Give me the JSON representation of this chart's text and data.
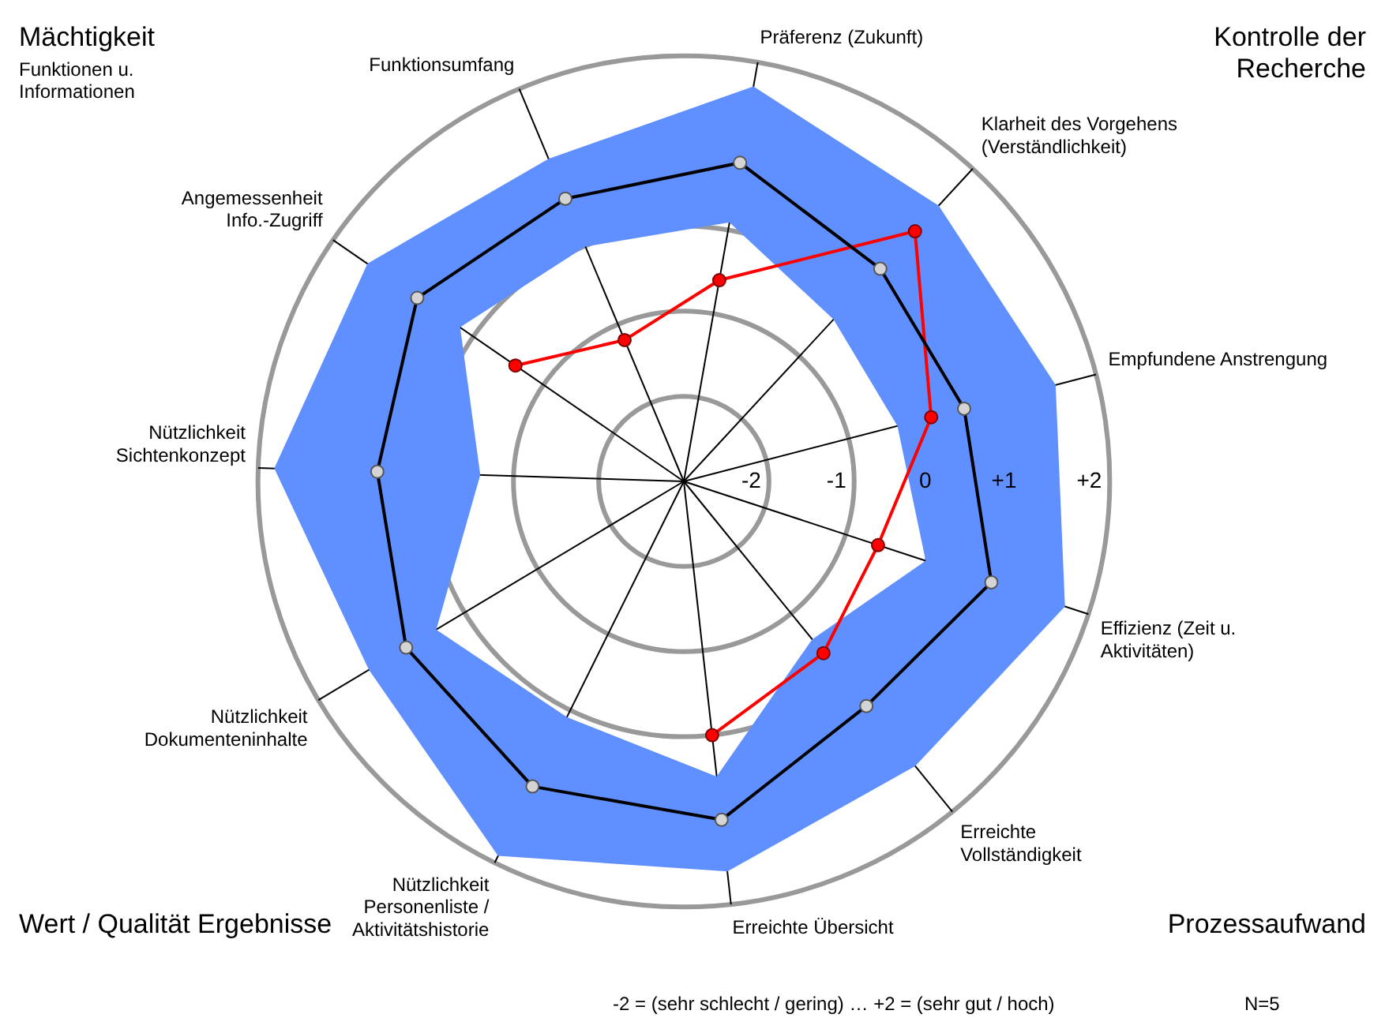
{
  "chart_data": {
    "type": "radar",
    "categories": [
      "Präferenz (Zukunft)",
      "Klarheit des Vorgehens (Verständlichkeit)",
      "Empfundene Anstrengung",
      "Effizienz (Zeit u. Aktivitäten)",
      "Erreichte Vollständigkeit",
      "Erreichte Übersicht",
      "Nützlichkeit Personenliste / Aktivitätshistorie",
      "Nützlichkeit Dokumenteninhalte",
      "Nützlichkeit Sichtenkonzept",
      "Angemessenheit Info.-Zugriff",
      "Funktionsumfang"
    ],
    "series": [
      {
        "color": "#000000",
        "values": [
          0.8,
          0.4,
          0.4,
          0.8,
          0.4,
          1.0,
          1.0,
          0.8,
          0.6,
          0.8,
          0.6
        ]
      },
      {
        "color": "#ff0000",
        "values": [
          -0.6,
          1.0,
          0.0,
          -0.6,
          -0.4,
          0.0,
          null,
          null,
          null,
          -0.6,
          -1.2
        ]
      },
      {
        "type": "area",
        "marker": "none",
        "color": "#6090ff",
        "values": [
          0.1,
          -0.4,
          -0.4,
          0.0,
          -0.6,
          0.5,
          0.1,
          0.4,
          -0.6,
          0.2,
          0.0
        ]
      },
      {
        "type": "area",
        "marker": "none",
        "color": "#6090ff",
        "values": [
          1.7,
          1.4,
          1.5,
          1.7,
          1.3,
          1.6,
          1.9,
          1.3,
          1.8,
          1.5,
          1.1
        ]
      }
    ],
    "ylim": [
      -3,
      2
    ],
    "yticks": [
      {
        "value": -2,
        "label": "-2"
      },
      {
        "value": -1,
        "label": "-1"
      },
      {
        "value": 0,
        "label": "0"
      },
      {
        "value": 1,
        "label": "+1"
      },
      {
        "value": 2,
        "label": "+2"
      }
    ],
    "grid": true,
    "marker": "circle",
    "line_style": "solid",
    "annotations": [
      "Mächtigkeit",
      "Funktionen u. Informationen",
      "Kontrolle der Recherche",
      "Wert / Qualität Ergebnisse",
      "Prozessaufwand",
      "-2 = (sehr schlecht / gering) … +2 = (sehr gut / hoch)",
      "N=5"
    ]
  }
}
